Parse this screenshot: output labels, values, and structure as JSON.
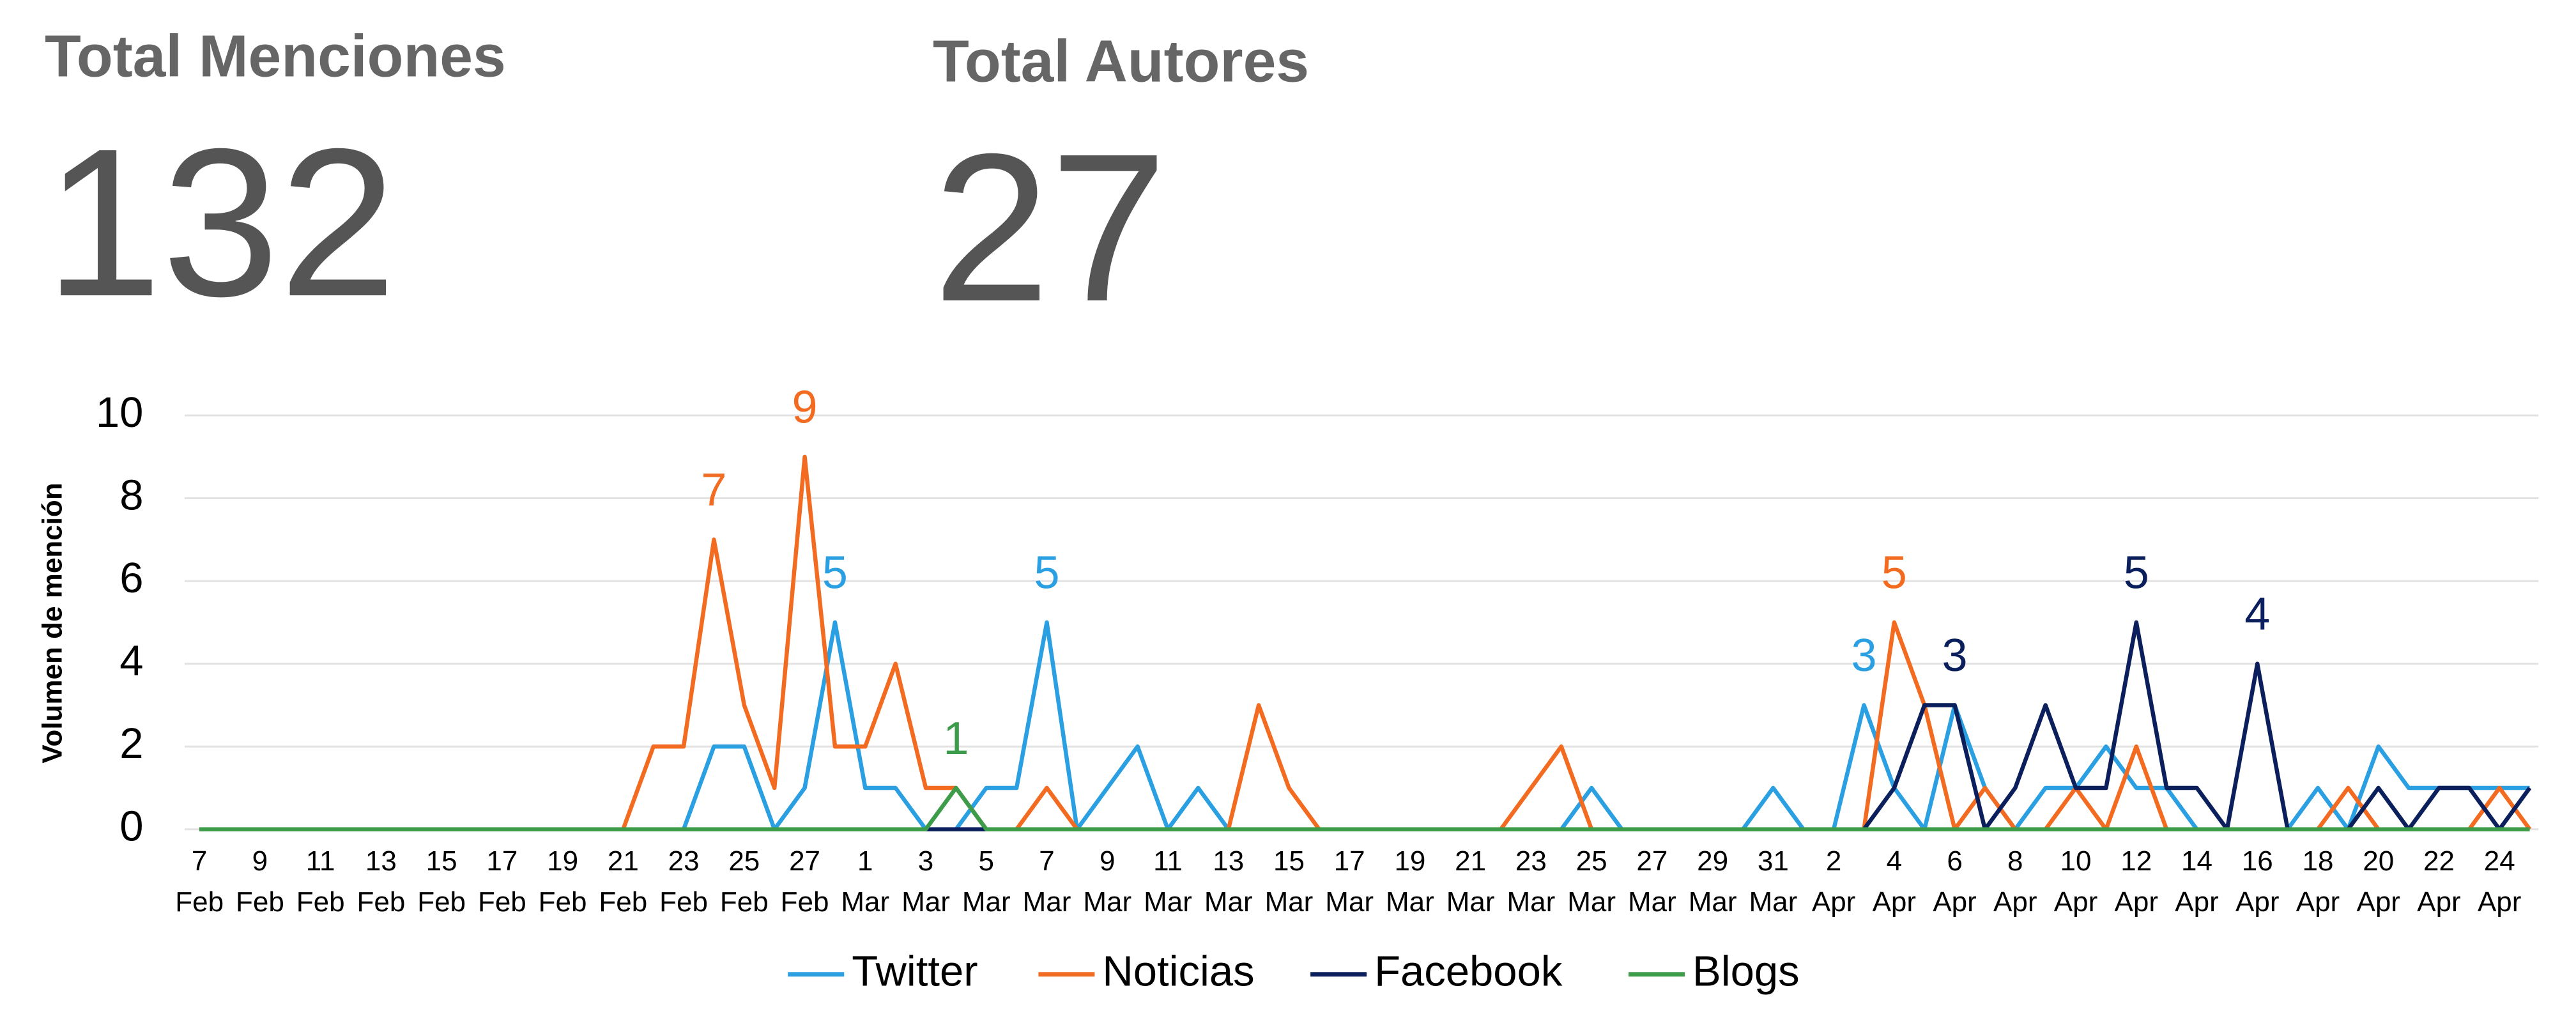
{
  "metrics": [
    {
      "title": "Total Menciones",
      "value": 132
    },
    {
      "title": "Total Autores",
      "value": 27
    }
  ],
  "chart_data": {
    "type": "line",
    "ylabel": "Volumen de mención",
    "categories": [
      "7 Feb",
      null,
      "9 Feb",
      null,
      "11 Feb",
      null,
      "13 Feb",
      null,
      "15 Feb",
      null,
      "17 Feb",
      null,
      "19 Feb",
      null,
      "21 Feb",
      null,
      "23 Feb",
      null,
      "25 Feb",
      null,
      "27 Feb",
      null,
      "1 Mar",
      null,
      "3 Mar",
      null,
      "5 Mar",
      null,
      "7 Mar",
      null,
      "9 Mar",
      null,
      "11 Mar",
      null,
      "13 Mar",
      null,
      "15 Mar",
      null,
      "17 Mar",
      null,
      "19 Mar",
      null,
      "21 Mar",
      null,
      "23 Mar",
      null,
      "25 Mar",
      null,
      "27 Mar",
      null,
      "29 Mar",
      null,
      "31 Mar",
      null,
      "2 Apr",
      null,
      "4 Apr",
      null,
      "6 Apr",
      null,
      "8 Apr",
      null,
      "10 Apr",
      null,
      "12 Apr",
      null,
      "14 Apr",
      null,
      "16 Apr",
      null,
      "18 Apr",
      null,
      "20 Apr",
      null,
      "22 Apr",
      null,
      "24 Apr",
      null
    ],
    "ylim": [
      0,
      10
    ],
    "yticks": [
      0,
      2,
      4,
      6,
      8,
      10
    ],
    "grid": true,
    "legend": "bottom",
    "series": [
      {
        "name": "Twitter",
        "color": "#2a9fe2",
        "data_labels": [
          21,
          28,
          55
        ],
        "values": [
          0,
          0,
          0,
          0,
          0,
          0,
          0,
          0,
          0,
          0,
          0,
          0,
          0,
          0,
          0,
          0,
          0,
          2,
          2,
          0,
          1,
          5,
          1,
          1,
          0,
          0,
          1,
          1,
          5,
          0,
          1,
          2,
          0,
          1,
          0,
          0,
          0,
          0,
          0,
          0,
          0,
          0,
          0,
          0,
          0,
          0,
          1,
          0,
          0,
          0,
          0,
          0,
          1,
          0,
          0,
          3,
          1,
          0,
          3,
          1,
          0,
          1,
          1,
          2,
          1,
          1,
          0,
          0,
          0,
          0,
          1,
          0,
          2,
          1,
          1,
          1,
          1,
          1
        ]
      },
      {
        "name": "Noticias",
        "color": "#f26b21",
        "data_labels": [
          17,
          20,
          56
        ],
        "values": [
          0,
          0,
          0,
          0,
          0,
          0,
          0,
          0,
          0,
          0,
          0,
          0,
          0,
          0,
          0,
          2,
          2,
          7,
          3,
          1,
          9,
          2,
          2,
          4,
          1,
          1,
          0,
          0,
          1,
          0,
          0,
          0,
          0,
          0,
          0,
          3,
          1,
          0,
          0,
          0,
          0,
          0,
          0,
          0,
          1,
          2,
          0,
          0,
          0,
          0,
          0,
          0,
          0,
          0,
          0,
          0,
          5,
          3,
          0,
          1,
          0,
          0,
          1,
          0,
          2,
          0,
          0,
          0,
          0,
          0,
          0,
          1,
          0,
          0,
          0,
          0,
          1,
          0
        ]
      },
      {
        "name": "Facebook",
        "color": "#0b1f5c",
        "data_labels": [
          58,
          64,
          68
        ],
        "values": [
          0,
          0,
          0,
          0,
          0,
          0,
          0,
          0,
          0,
          0,
          0,
          0,
          0,
          0,
          0,
          0,
          0,
          0,
          0,
          0,
          0,
          0,
          0,
          0,
          0,
          0,
          0,
          0,
          0,
          0,
          0,
          0,
          0,
          0,
          0,
          0,
          0,
          0,
          0,
          0,
          0,
          0,
          0,
          0,
          0,
          0,
          0,
          0,
          0,
          0,
          0,
          0,
          0,
          0,
          0,
          0,
          1,
          3,
          3,
          0,
          1,
          3,
          1,
          1,
          5,
          1,
          1,
          0,
          4,
          0,
          0,
          0,
          1,
          0,
          1,
          1,
          0,
          1
        ]
      },
      {
        "name": "Blogs",
        "color": "#3d9c4a",
        "data_labels": [
          25
        ],
        "values": [
          0,
          0,
          0,
          0,
          0,
          0,
          0,
          0,
          0,
          0,
          0,
          0,
          0,
          0,
          0,
          0,
          0,
          0,
          0,
          0,
          0,
          0,
          0,
          0,
          0,
          1,
          0,
          0,
          0,
          0,
          0,
          0,
          0,
          0,
          0,
          0,
          0,
          0,
          0,
          0,
          0,
          0,
          0,
          0,
          0,
          0,
          0,
          0,
          0,
          0,
          0,
          0,
          0,
          0,
          0,
          0,
          0,
          0,
          0,
          0,
          0,
          0,
          0,
          0,
          0,
          0,
          0,
          0,
          0,
          0,
          0,
          0,
          0,
          0,
          0,
          0,
          0,
          0
        ]
      }
    ]
  }
}
